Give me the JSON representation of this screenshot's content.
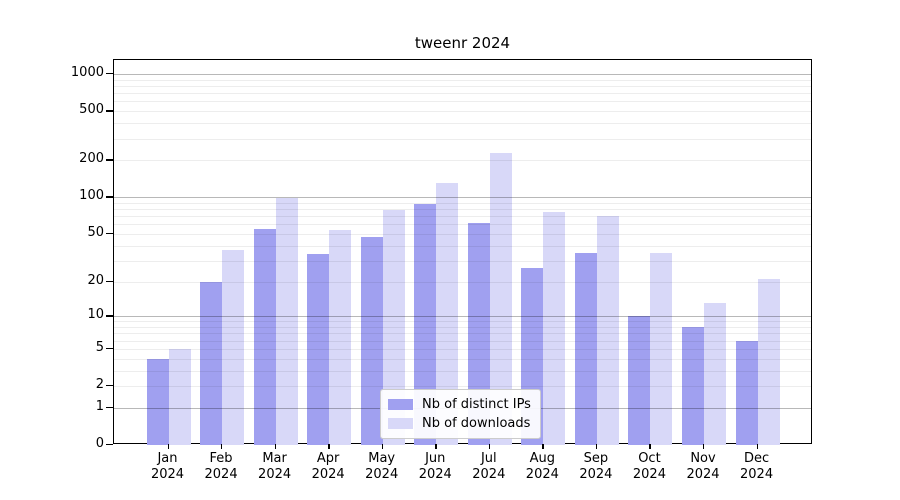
{
  "chart_data": {
    "type": "bar",
    "title": "tweenr 2024",
    "categories": [
      "Jan 2024",
      "Feb 2024",
      "Mar 2024",
      "Apr 2024",
      "May 2024",
      "Jun 2024",
      "Jul 2024",
      "Aug 2024",
      "Sep 2024",
      "Oct 2024",
      "Nov 2024",
      "Dec 2024"
    ],
    "series": [
      {
        "name": "Nb of distinct IPs",
        "color": "#a0a0f0",
        "values": [
          4,
          20,
          55,
          34,
          47,
          88,
          62,
          26,
          35,
          10,
          8,
          6
        ]
      },
      {
        "name": "Nb of downloads",
        "color": "#d8d8f8",
        "values": [
          5,
          37,
          98,
          54,
          78,
          130,
          228,
          76,
          70,
          35,
          13,
          21
        ]
      }
    ],
    "xlabel": "",
    "ylabel": "",
    "y_scale": "log10(1+x)",
    "y_ticks": [
      0,
      1,
      2,
      5,
      10,
      20,
      50,
      100,
      200,
      500,
      1000
    ],
    "ylim": [
      0,
      1070
    ],
    "grid": true,
    "legend_position": "lower-center",
    "colors": {
      "grid_major": "#b8b8b8",
      "grid_minor": "#ededed",
      "axis": "#000000",
      "background": "#ffffff"
    }
  }
}
